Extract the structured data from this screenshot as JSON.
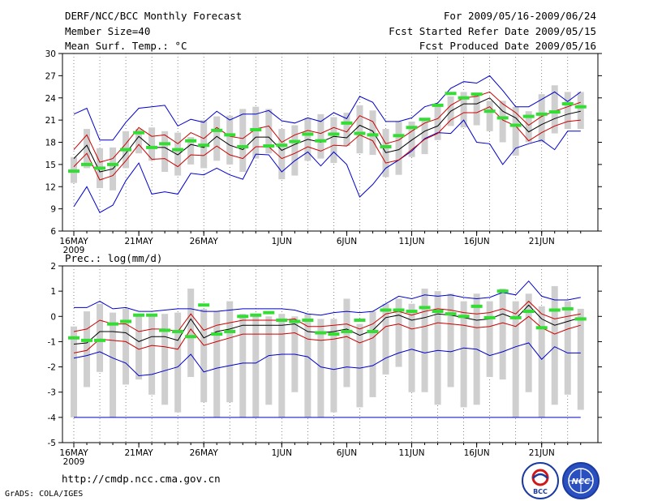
{
  "header": {
    "title": "DERF/NCC/BCC Monthly Forecast",
    "member_size": "Member Size=40",
    "variable": "Mean Surf. Temp.: °C",
    "period": "For 2009/05/16-2009/06/24",
    "started": "Fcst Started Refer Date 2009/05/15",
    "produced": "Fcst Produced Date 2009/05/16"
  },
  "footer": {
    "url": "http://cmdp.ncc.cma.gov.cn",
    "grads": "GrADS: COLA/IGES",
    "logo_bcc": "BCC",
    "logo_ncc": "NCC"
  },
  "colors": {
    "max_min": "#0000cc",
    "spread": "#cc0000",
    "mean": "#000000",
    "obs": "#33dd33",
    "box": "#cfcfcf"
  },
  "chart_data": [
    {
      "type": "line",
      "title": "Mean Surf. Temp.: °C",
      "ylim": [
        6,
        30
      ],
      "yticks": [
        6,
        9,
        12,
        15,
        18,
        21,
        24,
        27,
        30
      ],
      "xtick_labels": [
        "16MAY",
        "21MAY",
        "26MAY",
        "1JUN",
        "6JUN",
        "11JUN",
        "16JUN",
        "21JUN"
      ],
      "xtick_year": "2009",
      "xtick_days": [
        1,
        6,
        11,
        17,
        22,
        27,
        32,
        37
      ],
      "days": 40,
      "series": [
        {
          "name": "max",
          "values": [
            21.8,
            22.6,
            18.3,
            18.3,
            20.7,
            22.6,
            22.8,
            23.0,
            20.2,
            21.1,
            20.7,
            22.2,
            21.0,
            21.8,
            21.8,
            22.3,
            20.9,
            20.6,
            21.3,
            20.8,
            22.0,
            21.2,
            24.2,
            23.4,
            20.8,
            20.8,
            21.3,
            22.8,
            23.3,
            25.3,
            26.2,
            26.0,
            27.0,
            25.0,
            22.8,
            22.8,
            23.8,
            24.8,
            23.5,
            24.8
          ]
        },
        {
          "name": "upper",
          "values": [
            17.0,
            19.0,
            15.3,
            15.8,
            17.8,
            20.0,
            18.8,
            19.0,
            17.8,
            19.3,
            18.5,
            20.0,
            18.8,
            18.5,
            19.8,
            20.2,
            18.0,
            19.0,
            19.6,
            19.2,
            20.0,
            19.4,
            21.6,
            20.8,
            17.8,
            18.3,
            19.5,
            20.6,
            21.2,
            23.0,
            24.0,
            24.2,
            24.8,
            23.2,
            22.0,
            20.3,
            21.5,
            22.2,
            22.8,
            23.4
          ]
        },
        {
          "name": "mean",
          "values": [
            15.8,
            17.6,
            14.0,
            14.4,
            16.5,
            18.8,
            17.3,
            17.3,
            16.3,
            17.7,
            17.3,
            18.8,
            17.6,
            17.0,
            18.7,
            18.7,
            16.9,
            17.7,
            18.4,
            18.0,
            18.8,
            18.6,
            20.3,
            19.5,
            16.6,
            17.0,
            18.3,
            19.5,
            20.2,
            22.2,
            23.2,
            23.2,
            24.0,
            22.2,
            21.3,
            19.4,
            20.4,
            21.2,
            21.8,
            22.2
          ]
        },
        {
          "name": "lower",
          "values": [
            14.7,
            16.5,
            12.9,
            13.5,
            15.5,
            17.7,
            15.7,
            15.8,
            14.7,
            16.3,
            16.2,
            17.5,
            16.3,
            15.8,
            17.4,
            17.4,
            15.8,
            16.5,
            17.4,
            16.8,
            17.6,
            17.5,
            19.0,
            18.2,
            15.2,
            15.6,
            17.0,
            18.4,
            19.2,
            21.0,
            22.0,
            22.0,
            22.8,
            21.0,
            20.2,
            18.2,
            19.3,
            20.2,
            20.8,
            21.0
          ]
        },
        {
          "name": "min",
          "values": [
            9.3,
            12.0,
            8.5,
            9.5,
            12.8,
            15.2,
            11.0,
            11.3,
            11.0,
            13.8,
            13.6,
            14.5,
            13.6,
            13.0,
            16.4,
            16.3,
            14.0,
            15.5,
            16.7,
            14.8,
            16.7,
            15.0,
            10.6,
            12.3,
            14.5,
            15.6,
            16.8,
            18.5,
            19.3,
            19.2,
            21.0,
            18.0,
            17.8,
            15.0,
            17.2,
            17.8,
            18.3,
            17.0,
            19.5,
            19.5
          ]
        },
        {
          "name": "observed",
          "values": [
            14.1,
            15.0,
            14.5,
            15.0,
            17.0,
            19.3,
            17.3,
            17.8,
            17.0,
            18.2,
            17.6,
            19.6,
            19.0,
            17.4,
            19.7,
            17.5,
            17.6,
            18.1,
            19.1,
            18.2,
            19.1,
            20.6,
            19.2,
            19.0,
            17.4,
            18.9,
            20.0,
            21.1,
            23.0,
            24.6,
            24.0,
            24.5,
            22.2,
            21.3,
            20.3,
            21.5,
            21.8,
            22.1,
            23.2,
            22.8
          ]
        },
        {
          "name": "box_high",
          "values": [
            16.0,
            19.8,
            17.2,
            17.3,
            19.5,
            19.8,
            20.0,
            19.5,
            19.3,
            18.7,
            21.0,
            21.5,
            21.6,
            22.5,
            22.8,
            22.5,
            19.8,
            20.3,
            21.3,
            21.8,
            21.4,
            22.0,
            23.0,
            22.3,
            19.8,
            20.8,
            20.8,
            21.0,
            22.8,
            24.2,
            24.8,
            24.4,
            23.6,
            23.6,
            22.8,
            22.2,
            24.5,
            25.7,
            24.8,
            24.8
          ]
        },
        {
          "name": "box_low",
          "values": [
            12.5,
            14.5,
            11.8,
            11.5,
            14.5,
            16.5,
            15.5,
            14.0,
            13.5,
            15.0,
            14.5,
            15.5,
            15.0,
            14.0,
            15.8,
            16.5,
            13.0,
            13.5,
            15.5,
            15.8,
            15.2,
            17.5,
            16.5,
            16.3,
            13.3,
            13.6,
            16.0,
            16.4,
            18.3,
            20.2,
            20.0,
            20.3,
            19.5,
            18.0,
            16.2,
            18.0,
            18.0,
            19.2,
            19.8,
            19.8
          ]
        }
      ]
    },
    {
      "type": "line",
      "title": "Prec.: log(mm/d)",
      "ylim": [
        -5,
        2
      ],
      "yticks": [
        -5,
        -4,
        -3,
        -2,
        -1,
        0,
        1,
        2
      ],
      "xtick_labels": [
        "16MAY",
        "21MAY",
        "26MAY",
        "1JUN",
        "6JUN",
        "11JUN",
        "16JUN",
        "21JUN"
      ],
      "xtick_year": "2009",
      "xtick_days": [
        1,
        6,
        11,
        17,
        22,
        27,
        32,
        37
      ],
      "days": 40,
      "series": [
        {
          "name": "max",
          "values": [
            0.35,
            0.35,
            0.6,
            0.3,
            0.35,
            0.2,
            0.2,
            0.25,
            0.3,
            0.3,
            0.2,
            0.2,
            0.25,
            0.3,
            0.3,
            0.3,
            0.3,
            0.25,
            0.1,
            0.05,
            0.15,
            0.2,
            0.15,
            0.2,
            0.5,
            0.8,
            0.7,
            0.85,
            0.8,
            0.85,
            0.75,
            0.7,
            0.75,
            0.95,
            0.85,
            1.4,
            0.8,
            0.65,
            0.65,
            0.75
          ]
        },
        {
          "name": "upper",
          "values": [
            -0.6,
            -0.5,
            -0.15,
            -0.3,
            -0.3,
            -0.6,
            -0.5,
            -0.5,
            -0.6,
            0.1,
            -0.55,
            -0.35,
            -0.25,
            -0.15,
            -0.15,
            -0.15,
            -0.15,
            -0.1,
            -0.4,
            -0.4,
            -0.35,
            -0.3,
            -0.5,
            -0.3,
            0.1,
            0.2,
            0.05,
            0.2,
            0.3,
            0.25,
            0.15,
            0.1,
            0.15,
            0.3,
            0.1,
            0.6,
            0.1,
            -0.1,
            0.0,
            0.1
          ]
        },
        {
          "name": "mean",
          "values": [
            -1.1,
            -1.05,
            -0.6,
            -0.6,
            -0.65,
            -1.0,
            -0.8,
            -0.8,
            -0.95,
            -0.1,
            -0.85,
            -0.6,
            -0.5,
            -0.35,
            -0.35,
            -0.35,
            -0.35,
            -0.3,
            -0.6,
            -0.65,
            -0.6,
            -0.5,
            -0.75,
            -0.55,
            -0.05,
            0.05,
            -0.15,
            -0.05,
            0.1,
            0.05,
            -0.05,
            -0.15,
            -0.1,
            0.1,
            -0.1,
            0.45,
            -0.1,
            -0.35,
            -0.2,
            -0.05
          ]
        },
        {
          "name": "lower",
          "values": [
            -1.45,
            -1.35,
            -0.9,
            -0.95,
            -1.0,
            -1.3,
            -1.15,
            -1.2,
            -1.3,
            -0.5,
            -1.15,
            -1.0,
            -0.85,
            -0.7,
            -0.7,
            -0.7,
            -0.7,
            -0.65,
            -0.9,
            -0.95,
            -0.9,
            -0.8,
            -1.05,
            -0.85,
            -0.4,
            -0.3,
            -0.5,
            -0.4,
            -0.25,
            -0.3,
            -0.35,
            -0.45,
            -0.4,
            -0.25,
            -0.4,
            0.0,
            -0.45,
            -0.7,
            -0.5,
            -0.35
          ]
        },
        {
          "name": "min",
          "values": [
            -1.65,
            -1.55,
            -1.4,
            -1.65,
            -1.85,
            -2.35,
            -2.3,
            -2.15,
            -2.0,
            -1.5,
            -2.2,
            -2.05,
            -1.95,
            -1.85,
            -1.85,
            -1.55,
            -1.5,
            -1.5,
            -1.6,
            -2.0,
            -2.1,
            -2.0,
            -2.05,
            -1.95,
            -1.65,
            -1.45,
            -1.3,
            -1.45,
            -1.35,
            -1.4,
            -1.25,
            -1.3,
            -1.55,
            -1.4,
            -1.2,
            -1.05,
            -1.7,
            -1.2,
            -1.45,
            -1.45
          ]
        },
        {
          "name": "observed",
          "values": [
            -0.85,
            -0.95,
            -0.95,
            -0.3,
            -0.2,
            0.05,
            0.05,
            -0.55,
            -0.6,
            -0.8,
            0.45,
            -0.7,
            -0.6,
            0.0,
            0.05,
            0.15,
            -0.15,
            -0.2,
            -0.15,
            -0.65,
            -0.7,
            -0.6,
            -0.15,
            -0.6,
            0.25,
            0.25,
            0.2,
            0.35,
            0.2,
            0.1,
            0.0,
            0.4,
            -0.05,
            1.0,
            -0.05,
            0.2,
            -0.45,
            0.25,
            0.3,
            -0.1
          ]
        },
        {
          "name": "box_high",
          "values": [
            -0.4,
            0.2,
            0.5,
            0.15,
            0.3,
            0.0,
            0.1,
            0.1,
            0.15,
            1.1,
            0.3,
            0.2,
            0.6,
            0.1,
            0.1,
            0.0,
            0.1,
            0.0,
            0.1,
            -0.1,
            -0.1,
            0.7,
            -0.3,
            0.2,
            0.5,
            0.7,
            0.5,
            1.1,
            1.0,
            0.9,
            0.6,
            0.9,
            0.6,
            1.1,
            0.6,
            0.9,
            0.4,
            1.2,
            0.6,
            0.3
          ]
        },
        {
          "name": "box_low",
          "values": [
            -4.0,
            -2.8,
            -2.2,
            -4.0,
            -2.7,
            -2.5,
            -3.1,
            -3.5,
            -3.8,
            -2.4,
            -3.4,
            -4.0,
            -3.4,
            -4.0,
            -4.0,
            -3.5,
            -4.0,
            -3.0,
            -4.0,
            -4.0,
            -3.8,
            -2.8,
            -3.6,
            -3.2,
            -2.3,
            -2.0,
            -3.0,
            -3.0,
            -3.5,
            -2.8,
            -3.6,
            -3.5,
            -2.4,
            -2.5,
            -4.0,
            -3.0,
            -4.0,
            -3.5,
            -3.1,
            -3.7
          ]
        },
        {
          "name": "floor",
          "values": [
            -4.0,
            -4.0
          ]
        }
      ]
    }
  ]
}
